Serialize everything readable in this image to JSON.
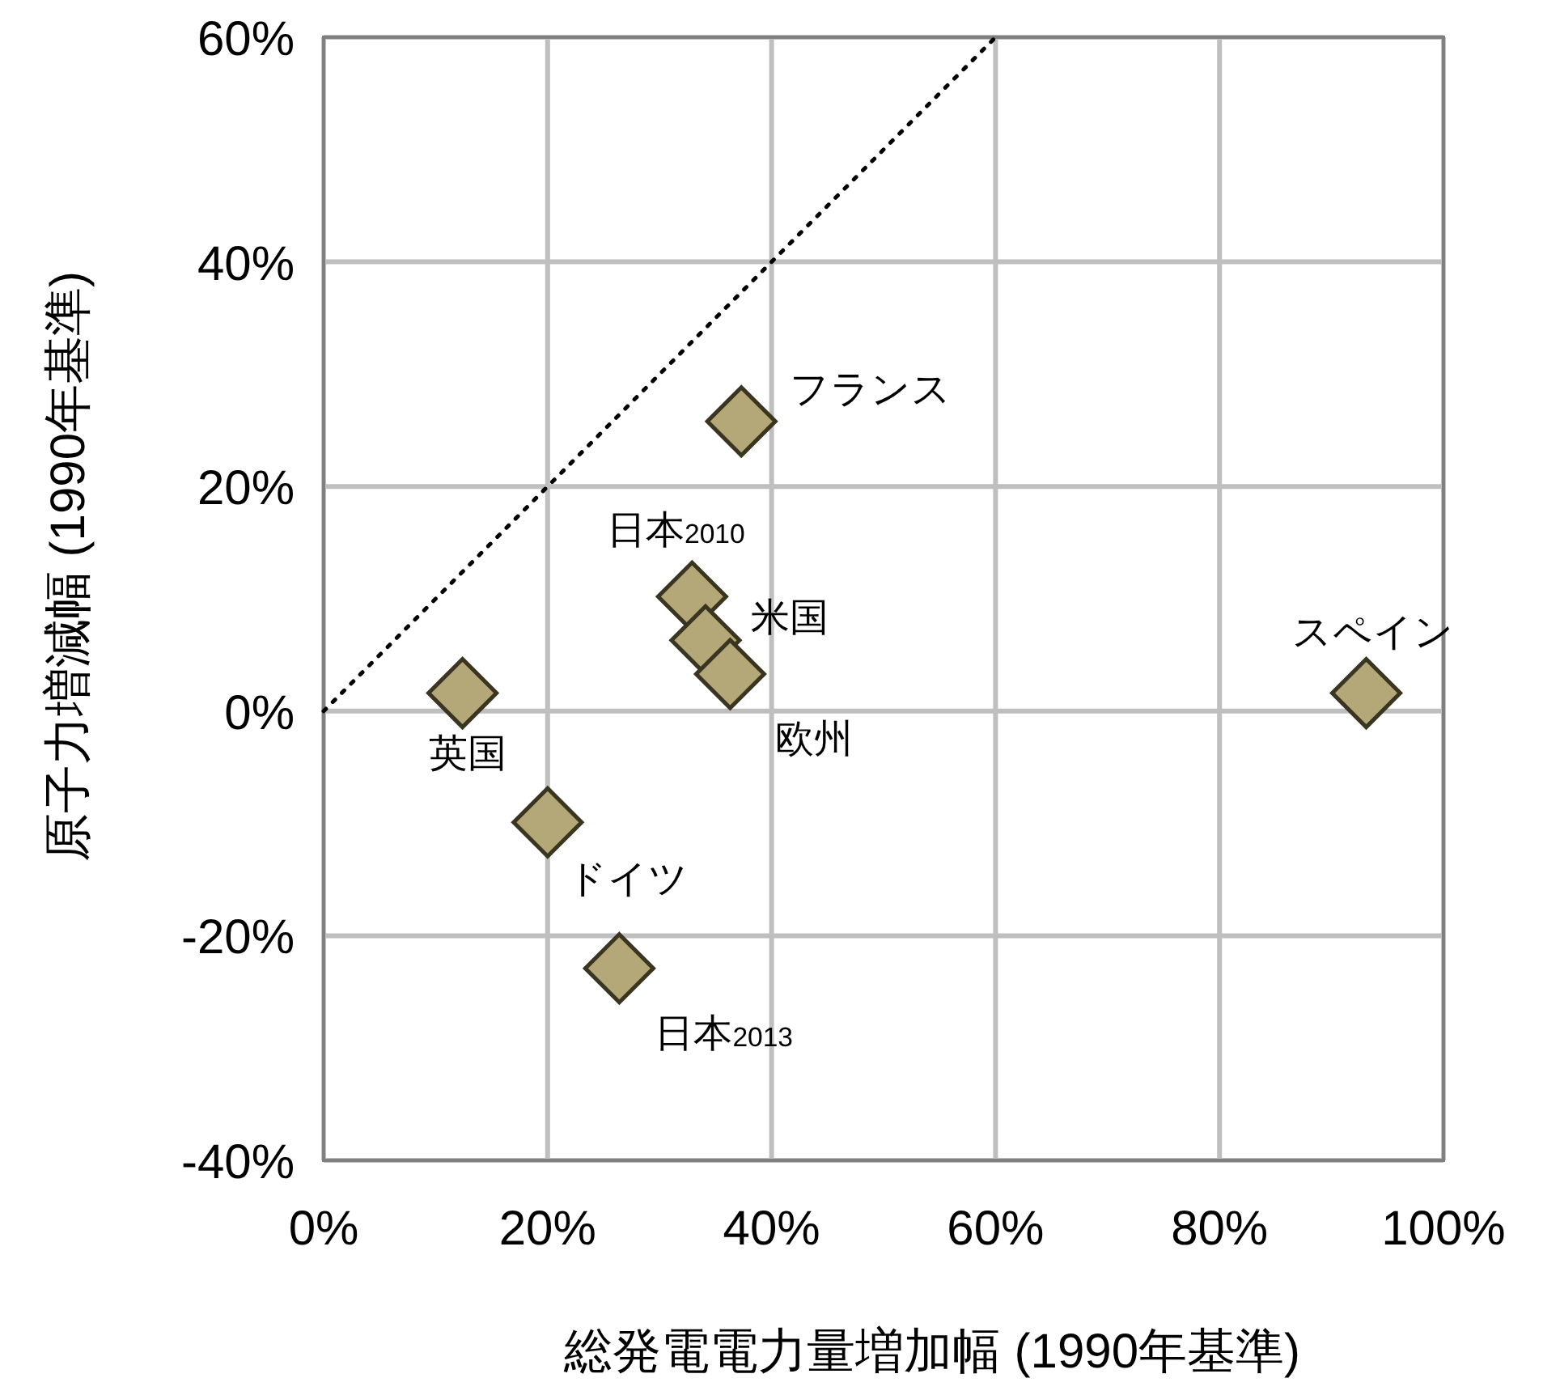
{
  "chart_data": {
    "type": "scatter",
    "xlabel": "総発電電力量増加幅 (1990年基準)",
    "ylabel": "原子力増減幅 (1990年基準)",
    "xlim": [
      0,
      100
    ],
    "ylim": [
      -40,
      60
    ],
    "xticks": [
      {
        "value": 0,
        "label": "0%"
      },
      {
        "value": 20,
        "label": "20%"
      },
      {
        "value": 40,
        "label": "40%"
      },
      {
        "value": 60,
        "label": "60%"
      },
      {
        "value": 80,
        "label": "80%"
      },
      {
        "value": 100,
        "label": "100%"
      }
    ],
    "yticks": [
      {
        "value": -40,
        "label": "-40%"
      },
      {
        "value": -20,
        "label": "-20%"
      },
      {
        "value": 0,
        "label": "0%"
      },
      {
        "value": 20,
        "label": "20%"
      },
      {
        "value": 40,
        "label": "40%"
      },
      {
        "value": 60,
        "label": "60%"
      }
    ],
    "grid": true,
    "series": [
      {
        "type": "line",
        "color": "#000000",
        "line_style": "dotted",
        "marker": "none",
        "x": [
          0,
          60
        ],
        "values": [
          0,
          60
        ]
      },
      {
        "color": "#b5a878",
        "marker": "diamond",
        "x": [
          37.3,
          32.9,
          34.1,
          36.3,
          12.4,
          20.0,
          26.4,
          93.1
        ],
        "values": [
          25.8,
          10.2,
          6.3,
          3.3,
          1.6,
          -9.9,
          -22.9,
          1.6
        ]
      }
    ],
    "annotations": [
      {
        "text": "フランス",
        "x": 37.3,
        "y": 25.8
      },
      {
        "text": "日本$_{2010}$",
        "x": 32.9,
        "y": 10.2
      },
      {
        "text": "米国",
        "x": 34.1,
        "y": 6.3
      },
      {
        "text": "欧州",
        "x": 36.3,
        "y": 3.3
      },
      {
        "text": "英国",
        "x": 12.4,
        "y": 1.6
      },
      {
        "text": "ドイツ",
        "x": 20.0,
        "y": -9.9
      },
      {
        "text": "日本$_{2013}$",
        "x": 26.4,
        "y": -22.9
      },
      {
        "text": "スペイン",
        "x": 93.1,
        "y": 1.6
      }
    ]
  }
}
